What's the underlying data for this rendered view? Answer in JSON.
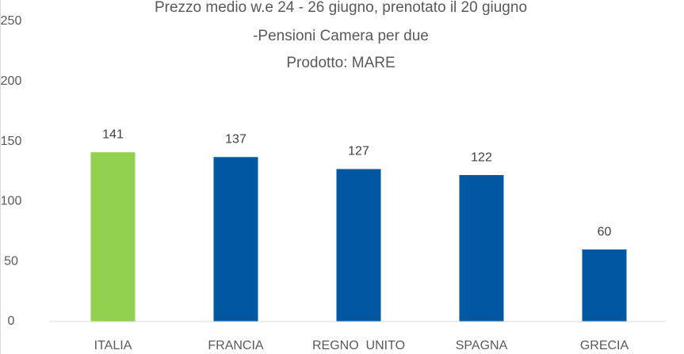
{
  "chart_data": {
    "type": "bar",
    "title": [
      "Prezzo medio w.e 24 - 26 giugno, prenotato il 20 giugno",
      "-Pensioni Camera per due",
      "Prodotto: MARE"
    ],
    "categories": [
      "ITALIA",
      "FRANCIA",
      "REGNO  UNITO",
      "SPAGNA",
      "GRECIA"
    ],
    "values": [
      141,
      137,
      127,
      122,
      60
    ],
    "colors": [
      "#92d050",
      "#0058a3",
      "#0058a3",
      "#0058a3",
      "#0058a3"
    ],
    "ylim": [
      0,
      250
    ],
    "yticks": [
      0,
      50,
      100,
      150,
      200,
      250
    ],
    "grid": false
  }
}
